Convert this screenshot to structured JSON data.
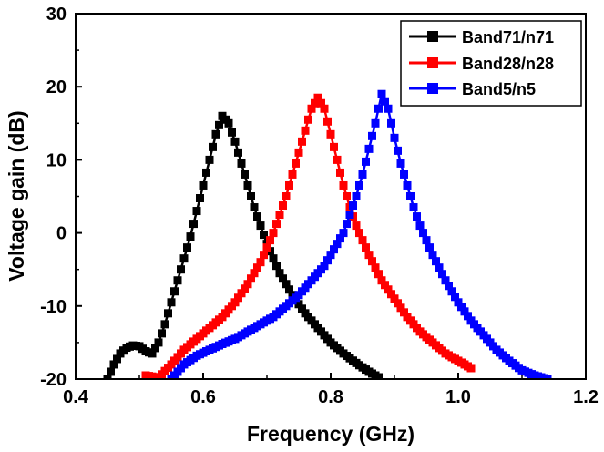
{
  "chart_data": {
    "type": "line",
    "title": "",
    "xlabel": "Frequency (GHz)",
    "ylabel": "Voltage gain (dB)",
    "xlim": [
      0.4,
      1.2
    ],
    "ylim": [
      -20,
      30
    ],
    "xticks": [
      0.4,
      0.6,
      0.8,
      1.0,
      1.2
    ],
    "xtick_labels": [
      "0.4",
      "0.6",
      "0.8",
      "1.0",
      "1.2"
    ],
    "yticks": [
      -20,
      -10,
      0,
      10,
      20,
      30
    ],
    "ytick_labels": [
      "-20",
      "-10",
      "0",
      "10",
      "20",
      "30"
    ],
    "grid": false,
    "legend_position": "top-right",
    "marker": "square",
    "series": [
      {
        "name": "Band71/n71",
        "color": "#000000",
        "points": [
          [
            0.45,
            -20
          ],
          [
            0.46,
            -18
          ],
          [
            0.47,
            -16.5
          ],
          [
            0.48,
            -15.7
          ],
          [
            0.49,
            -15.4
          ],
          [
            0.5,
            -15.5
          ],
          [
            0.51,
            -16.2
          ],
          [
            0.52,
            -16.5
          ],
          [
            0.53,
            -15
          ],
          [
            0.54,
            -12.5
          ],
          [
            0.55,
            -9.5
          ],
          [
            0.56,
            -6.5
          ],
          [
            0.57,
            -3.5
          ],
          [
            0.58,
            -0.5
          ],
          [
            0.59,
            3
          ],
          [
            0.6,
            6.5
          ],
          [
            0.61,
            10
          ],
          [
            0.62,
            13.5
          ],
          [
            0.63,
            16
          ],
          [
            0.64,
            15
          ],
          [
            0.65,
            12.5
          ],
          [
            0.66,
            9.5
          ],
          [
            0.67,
            6.5
          ],
          [
            0.68,
            3.5
          ],
          [
            0.69,
            1
          ],
          [
            0.7,
            -1.5
          ],
          [
            0.72,
            -5.5
          ],
          [
            0.74,
            -8.5
          ],
          [
            0.76,
            -11
          ],
          [
            0.78,
            -13
          ],
          [
            0.8,
            -15
          ],
          [
            0.82,
            -16.5
          ],
          [
            0.84,
            -17.8
          ],
          [
            0.86,
            -19
          ],
          [
            0.88,
            -20
          ]
        ]
      },
      {
        "name": "Band28/n28",
        "color": "#ff0000",
        "points": [
          [
            0.51,
            -19.5
          ],
          [
            0.53,
            -19.8
          ],
          [
            0.55,
            -18
          ],
          [
            0.57,
            -16
          ],
          [
            0.59,
            -14.5
          ],
          [
            0.61,
            -13
          ],
          [
            0.63,
            -11.5
          ],
          [
            0.65,
            -9.5
          ],
          [
            0.67,
            -7
          ],
          [
            0.69,
            -4
          ],
          [
            0.7,
            -2
          ],
          [
            0.71,
            0
          ],
          [
            0.72,
            2.5
          ],
          [
            0.73,
            5
          ],
          [
            0.74,
            8
          ],
          [
            0.75,
            11
          ],
          [
            0.76,
            14
          ],
          [
            0.77,
            17
          ],
          [
            0.78,
            18.5
          ],
          [
            0.79,
            17
          ],
          [
            0.8,
            13.5
          ],
          [
            0.81,
            10
          ],
          [
            0.82,
            6.5
          ],
          [
            0.83,
            3.5
          ],
          [
            0.84,
            1
          ],
          [
            0.86,
            -3
          ],
          [
            0.88,
            -6.5
          ],
          [
            0.9,
            -9
          ],
          [
            0.92,
            -11.5
          ],
          [
            0.94,
            -13.5
          ],
          [
            0.96,
            -15
          ],
          [
            0.98,
            -16.5
          ],
          [
            1.0,
            -17.5
          ],
          [
            1.02,
            -18.5
          ]
        ]
      },
      {
        "name": "Band5/n5",
        "color": "#0000ff",
        "points": [
          [
            0.55,
            -20
          ],
          [
            0.57,
            -18
          ],
          [
            0.59,
            -16.8
          ],
          [
            0.61,
            -16
          ],
          [
            0.63,
            -15.2
          ],
          [
            0.65,
            -14.5
          ],
          [
            0.67,
            -13.5
          ],
          [
            0.69,
            -12.5
          ],
          [
            0.71,
            -11.5
          ],
          [
            0.73,
            -10
          ],
          [
            0.75,
            -8.5
          ],
          [
            0.77,
            -6.5
          ],
          [
            0.79,
            -4.5
          ],
          [
            0.8,
            -3
          ],
          [
            0.81,
            -1.5
          ],
          [
            0.82,
            0
          ],
          [
            0.83,
            2.5
          ],
          [
            0.84,
            5
          ],
          [
            0.85,
            8
          ],
          [
            0.86,
            11.5
          ],
          [
            0.87,
            15
          ],
          [
            0.88,
            19
          ],
          [
            0.89,
            17
          ],
          [
            0.9,
            13
          ],
          [
            0.91,
            9.5
          ],
          [
            0.92,
            6.5
          ],
          [
            0.93,
            3.5
          ],
          [
            0.94,
            1
          ],
          [
            0.96,
            -3
          ],
          [
            0.98,
            -6.5
          ],
          [
            1.0,
            -9.5
          ],
          [
            1.02,
            -12
          ],
          [
            1.04,
            -14
          ],
          [
            1.06,
            -16
          ],
          [
            1.08,
            -17.5
          ],
          [
            1.1,
            -18.8
          ],
          [
            1.12,
            -19.5
          ],
          [
            1.14,
            -20
          ]
        ]
      }
    ]
  }
}
